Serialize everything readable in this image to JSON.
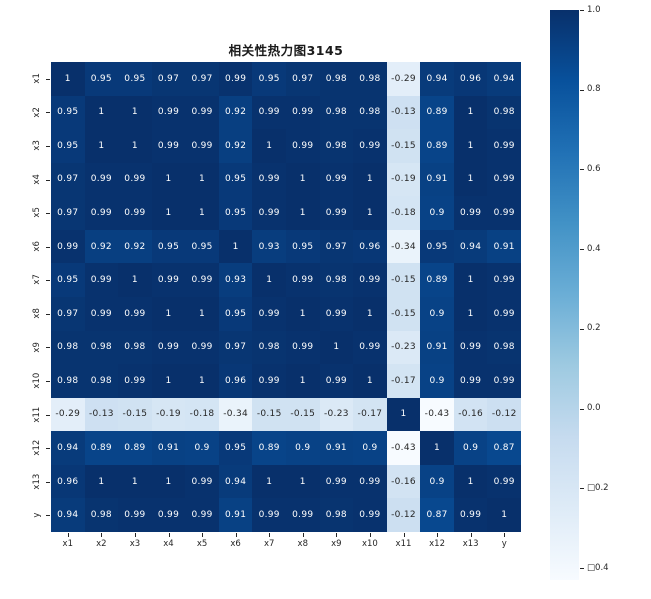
{
  "figure": {
    "background": "#ffffff"
  },
  "chart_data": {
    "type": "heatmap",
    "title": "相关性热力图3145",
    "labels": [
      "x1",
      "x2",
      "x3",
      "x4",
      "x5",
      "x6",
      "x7",
      "x8",
      "x9",
      "x10",
      "x11",
      "x12",
      "x13",
      "y"
    ],
    "matrix": [
      [
        1,
        0.95,
        0.95,
        0.97,
        0.97,
        0.99,
        0.95,
        0.97,
        0.98,
        0.98,
        -0.29,
        0.94,
        0.96,
        0.94
      ],
      [
        0.95,
        1,
        1,
        0.99,
        0.99,
        0.92,
        0.99,
        0.99,
        0.98,
        0.98,
        -0.13,
        0.89,
        1,
        0.98
      ],
      [
        0.95,
        1,
        1,
        0.99,
        0.99,
        0.92,
        1,
        0.99,
        0.98,
        0.99,
        -0.15,
        0.89,
        1,
        0.99
      ],
      [
        0.97,
        0.99,
        0.99,
        1,
        1,
        0.95,
        0.99,
        1,
        0.99,
        1,
        -0.19,
        0.91,
        1,
        0.99
      ],
      [
        0.97,
        0.99,
        0.99,
        1,
        1,
        0.95,
        0.99,
        1,
        0.99,
        1,
        -0.18,
        0.9,
        0.99,
        0.99
      ],
      [
        0.99,
        0.92,
        0.92,
        0.95,
        0.95,
        1,
        0.93,
        0.95,
        0.97,
        0.96,
        -0.34,
        0.95,
        0.94,
        0.91
      ],
      [
        0.95,
        0.99,
        1,
        0.99,
        0.99,
        0.93,
        1,
        0.99,
        0.98,
        0.99,
        -0.15,
        0.89,
        1,
        0.99
      ],
      [
        0.97,
        0.99,
        0.99,
        1,
        1,
        0.95,
        0.99,
        1,
        0.99,
        1,
        -0.15,
        0.9,
        1,
        0.99
      ],
      [
        0.98,
        0.98,
        0.98,
        0.99,
        0.99,
        0.97,
        0.98,
        0.99,
        1,
        0.99,
        -0.23,
        0.91,
        0.99,
        0.98
      ],
      [
        0.98,
        0.98,
        0.99,
        1,
        1,
        0.96,
        0.99,
        1,
        0.99,
        1,
        -0.17,
        0.9,
        0.99,
        0.99
      ],
      [
        -0.29,
        -0.13,
        -0.15,
        -0.19,
        -0.18,
        -0.34,
        -0.15,
        -0.15,
        -0.23,
        -0.17,
        1,
        -0.43,
        -0.16,
        -0.12
      ],
      [
        0.94,
        0.89,
        0.89,
        0.91,
        0.9,
        0.95,
        0.89,
        0.9,
        0.91,
        0.9,
        -0.43,
        1,
        0.9,
        0.87
      ],
      [
        0.96,
        1,
        1,
        1,
        0.99,
        0.94,
        1,
        1,
        0.99,
        0.99,
        -0.16,
        0.9,
        1,
        0.99
      ],
      [
        0.94,
        0.98,
        0.99,
        0.99,
        0.99,
        0.91,
        0.99,
        0.99,
        0.98,
        0.99,
        -0.12,
        0.87,
        0.99,
        1
      ]
    ],
    "vmin": -0.43,
    "vmax": 1.0,
    "colormap": "Blues",
    "colormap_colors": [
      "#f7fbff",
      "#deebf7",
      "#c6dbef",
      "#9ecae1",
      "#6baed6",
      "#4292c6",
      "#2171b5",
      "#08519c",
      "#08306b"
    ],
    "annotation_text_dark": "#262626",
    "annotation_text_light": "#ffffff",
    "colorbar_ticks": [
      {
        "value": 1.0,
        "label": "1.0"
      },
      {
        "value": 0.8,
        "label": "0.8"
      },
      {
        "value": 0.6,
        "label": "0.6"
      },
      {
        "value": 0.4,
        "label": "0.4"
      },
      {
        "value": 0.2,
        "label": "0.2"
      },
      {
        "value": 0.0,
        "label": "0.0"
      },
      {
        "value": -0.2,
        "label": "□0.2"
      },
      {
        "value": -0.4,
        "label": "□0.4"
      }
    ],
    "legend_position": "right",
    "grid": false
  }
}
